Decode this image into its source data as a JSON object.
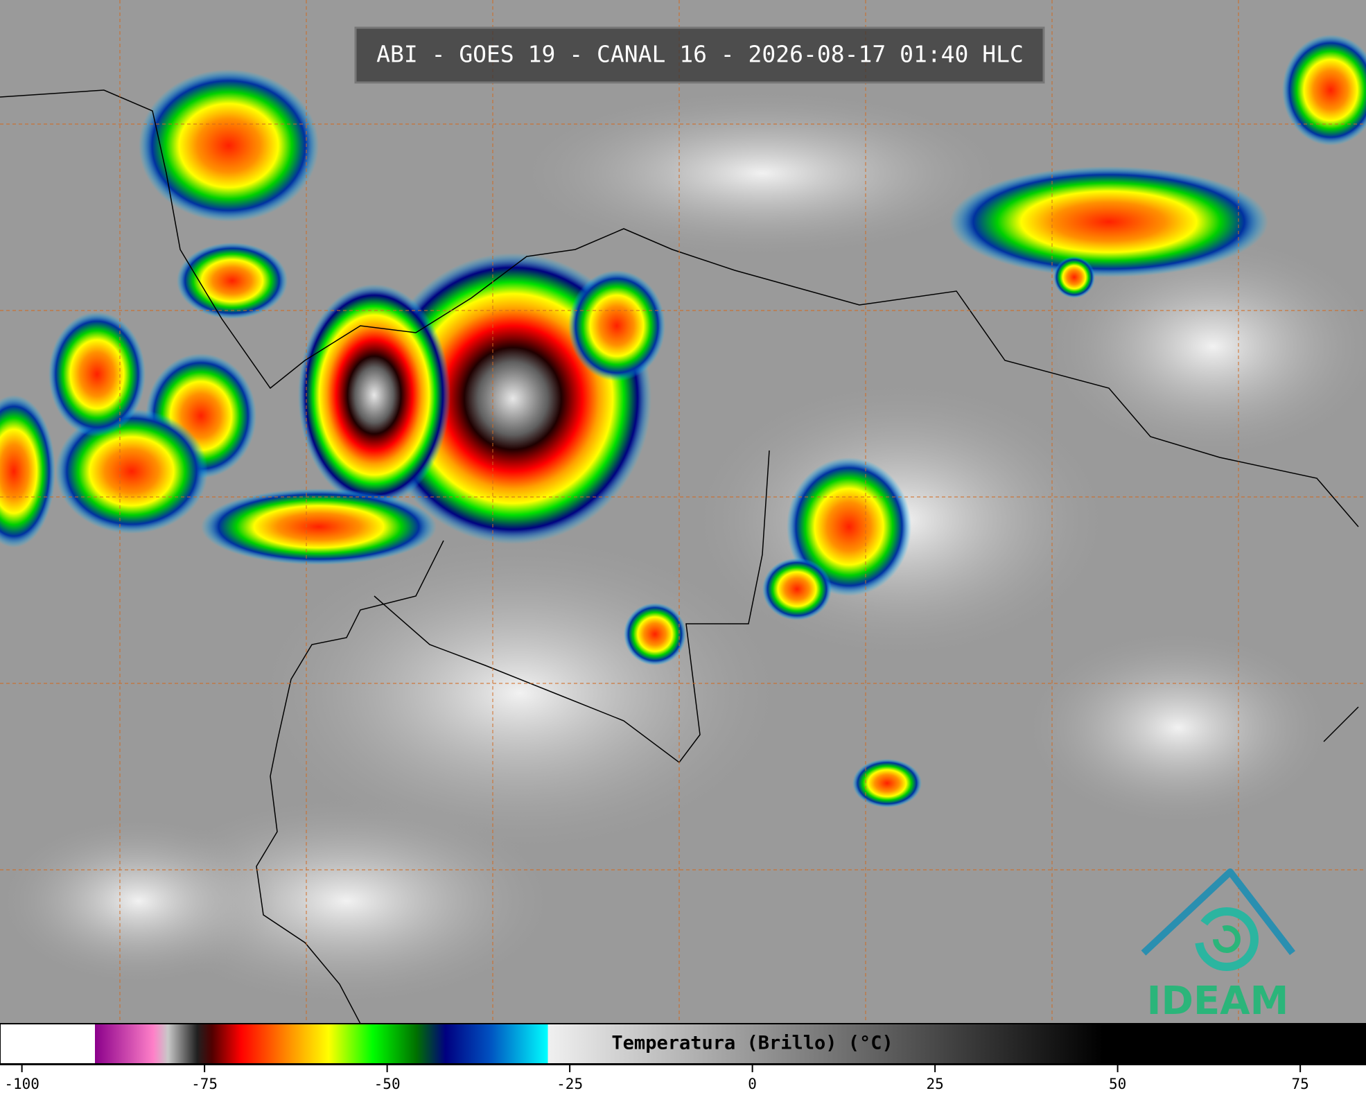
{
  "title": "ABI - GOES 19 - CANAL 16 - 2026-08-17 01:40 HLC",
  "logo": "IDEAM",
  "colorbar": {
    "label": "Temperatura (Brillo) (°C)",
    "xlim": [
      -103,
      84
    ],
    "xticks": [
      -100,
      -75,
      -50,
      -25,
      0,
      25,
      50,
      75
    ],
    "colors": [
      [
        -103,
        "#ffffff"
      ],
      [
        -90,
        "#ffffff"
      ],
      [
        -90,
        "#8b008b"
      ],
      [
        -82,
        "#ff80c8"
      ],
      [
        -80,
        "#c8c8c8"
      ],
      [
        -76,
        "#202020"
      ],
      [
        -74,
        "#500000"
      ],
      [
        -70,
        "#ff0000"
      ],
      [
        -63,
        "#ff9900"
      ],
      [
        -58,
        "#ffff00"
      ],
      [
        -52,
        "#00ff00"
      ],
      [
        -46,
        "#007000"
      ],
      [
        -42,
        "#000080"
      ],
      [
        -36,
        "#0050c0"
      ],
      [
        -28,
        "#00ffff"
      ],
      [
        -28,
        "#f0f0f0"
      ],
      [
        48,
        "#000000"
      ],
      [
        84,
        "#000000"
      ]
    ]
  }
}
